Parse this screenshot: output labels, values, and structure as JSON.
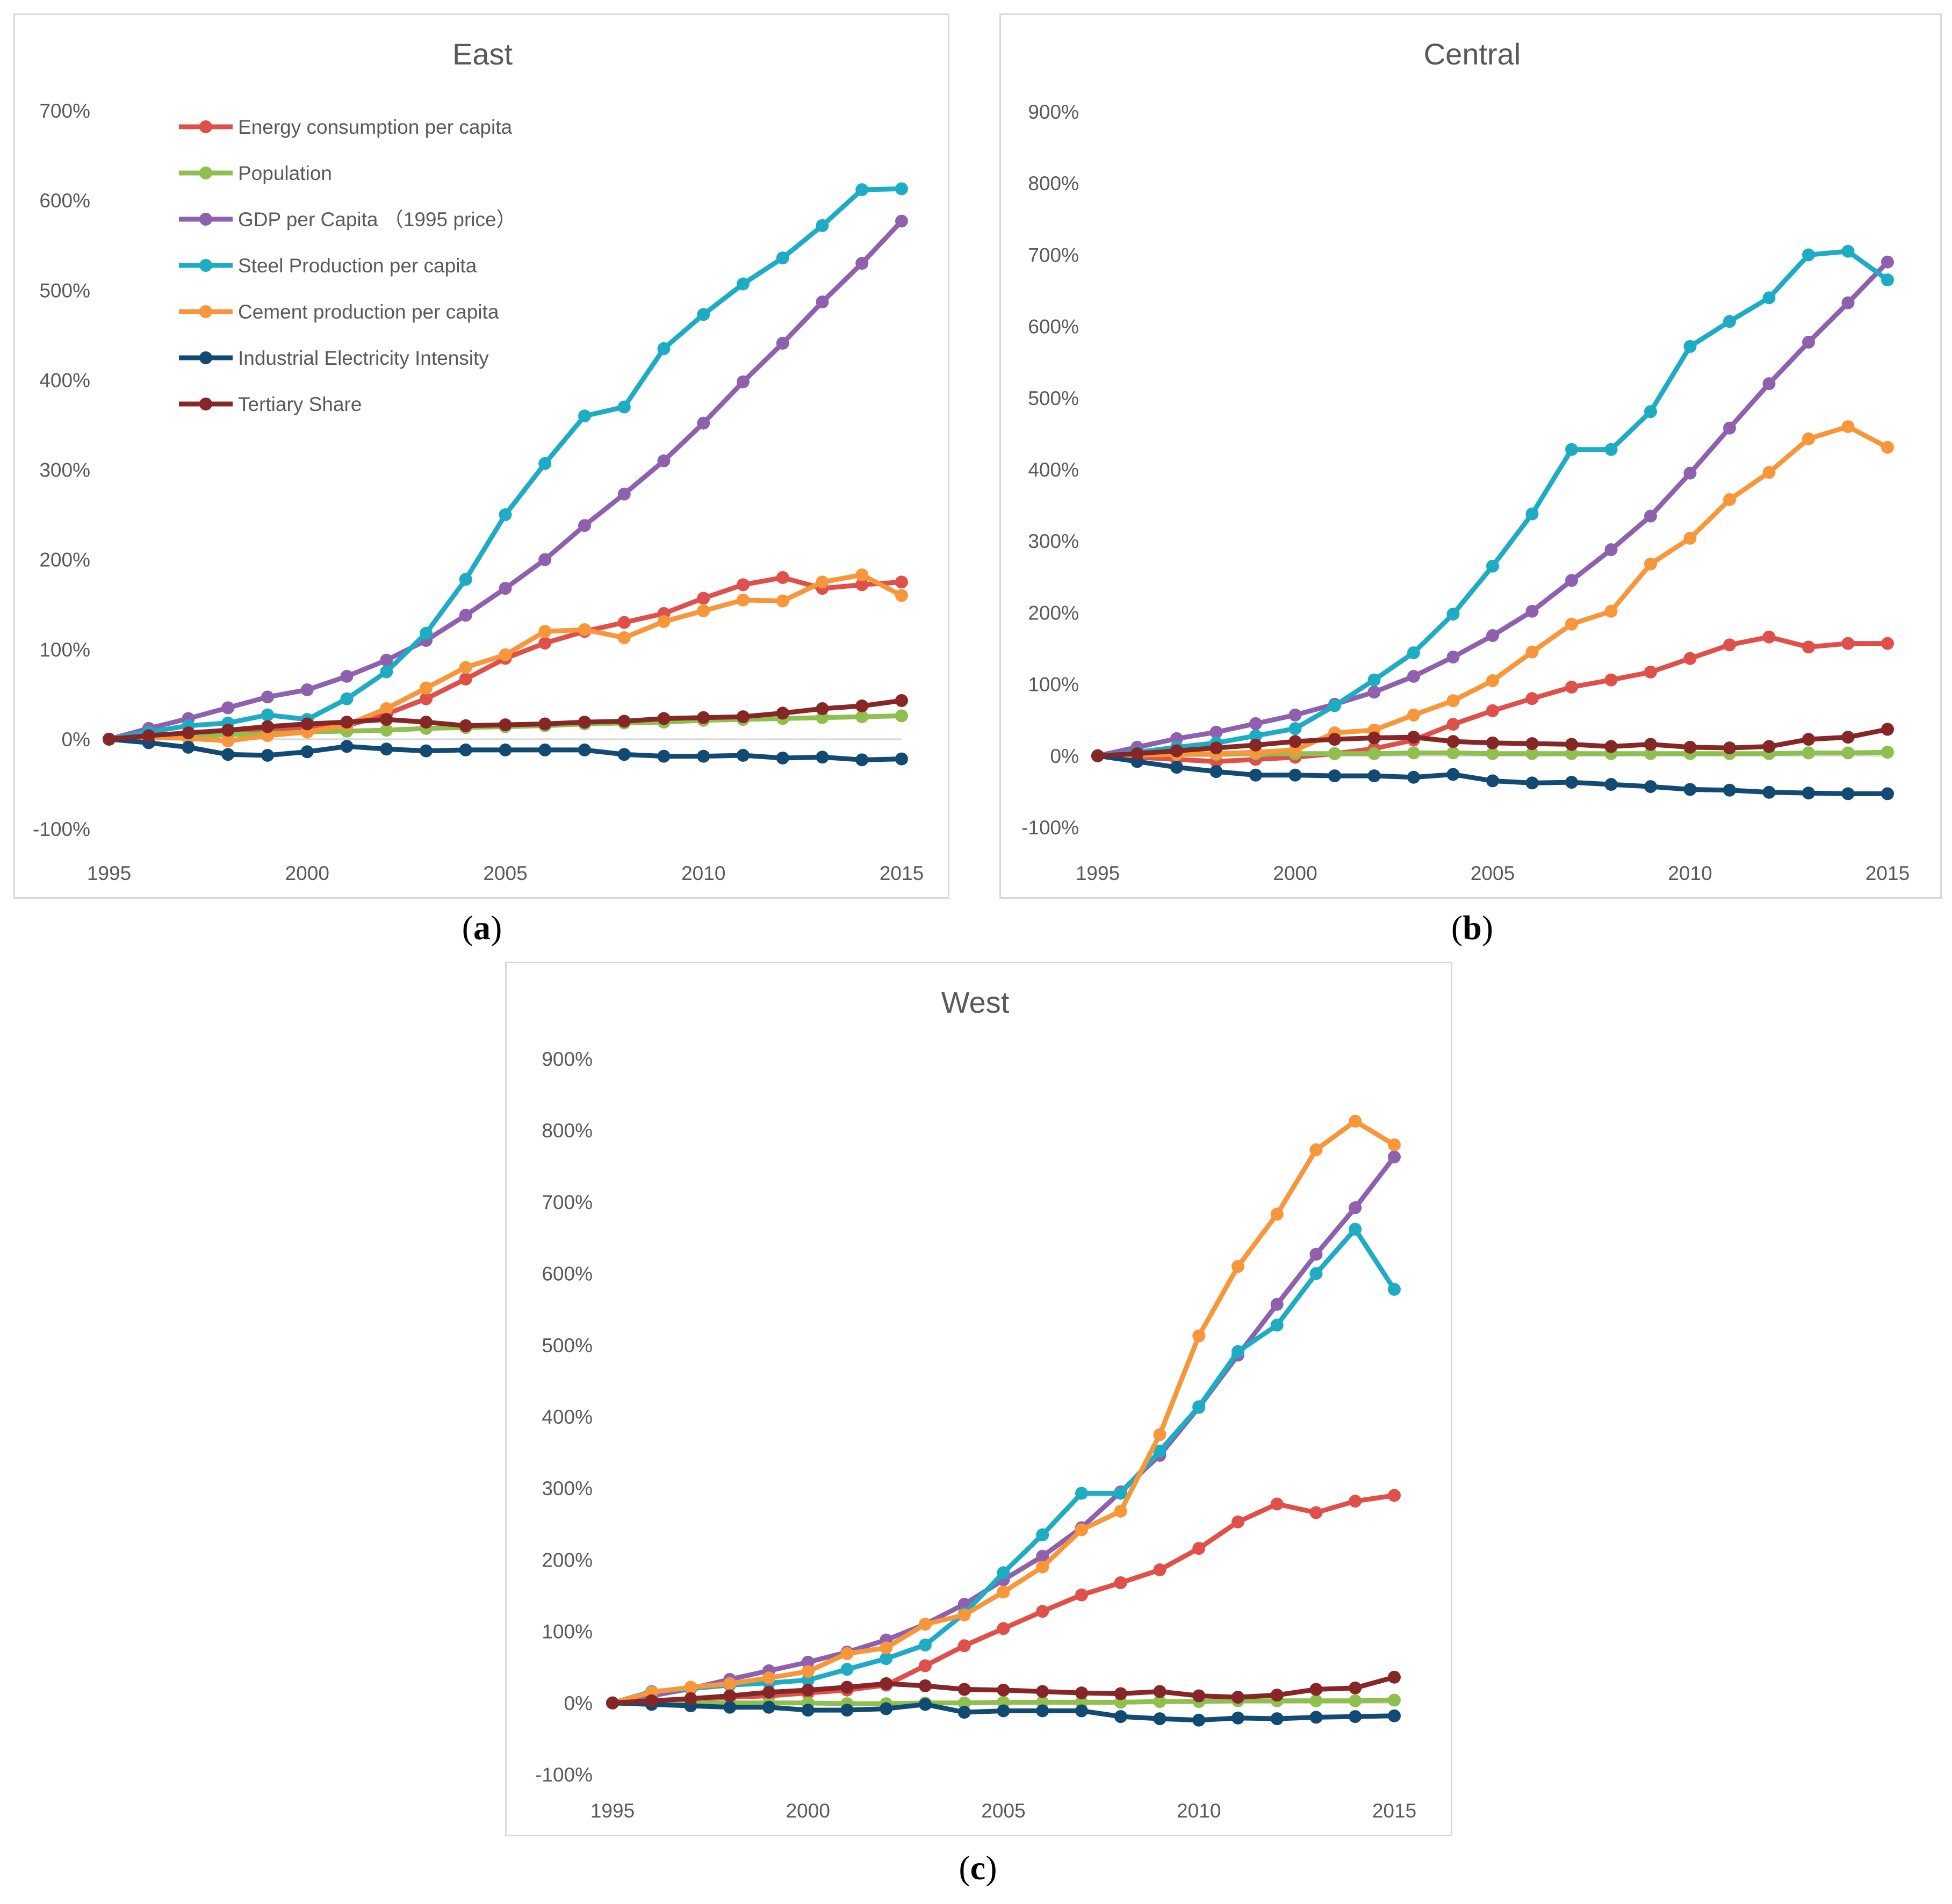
{
  "figure": {
    "captions": [
      "a",
      "b",
      "c"
    ]
  },
  "chart_data": [
    {
      "type": "line",
      "title": "East",
      "xlabel": "",
      "ylabel": "",
      "x": [
        1995,
        1996,
        1997,
        1998,
        1999,
        2000,
        2001,
        2002,
        2003,
        2004,
        2005,
        2006,
        2007,
        2008,
        2009,
        2010,
        2011,
        2012,
        2013,
        2014,
        2015
      ],
      "xticks": [
        "1995",
        "2000",
        "2005",
        "2010",
        "2015"
      ],
      "yticks": [
        "700%",
        "600%",
        "500%",
        "400%",
        "300%",
        "200%",
        "100%",
        "0%",
        "-100%"
      ],
      "ylim": [
        -100,
        700
      ],
      "legend": "top-left",
      "series": [
        {
          "name": "Energy consumption per capita",
          "color": "#e0504a",
          "values": [
            0,
            4,
            6,
            8,
            10,
            12,
            15,
            28,
            45,
            67,
            90,
            107,
            120,
            130,
            140,
            157,
            172,
            180,
            168,
            172,
            175
          ]
        },
        {
          "name": "Population",
          "color": "#8fbf4f",
          "values": [
            0,
            1,
            3,
            5,
            6,
            8,
            9,
            10,
            12,
            13,
            14,
            15,
            17,
            18,
            19,
            21,
            22,
            23,
            24,
            25,
            26
          ]
        },
        {
          "name": "GDP per Capita （1995 price）",
          "color": "#8e60ae",
          "values": [
            0,
            12,
            23,
            35,
            47,
            55,
            70,
            88,
            110,
            138,
            168,
            200,
            238,
            273,
            310,
            352,
            398,
            441,
            487,
            530,
            577
          ]
        },
        {
          "name": "Steel Production per capita",
          "color": "#1eacc4",
          "values": [
            0,
            8,
            15,
            18,
            27,
            22,
            45,
            75,
            118,
            178,
            250,
            307,
            360,
            370,
            435,
            473,
            507,
            536,
            572,
            612,
            613
          ]
        },
        {
          "name": "Cement production per capita",
          "color": "#f8963a",
          "values": [
            0,
            2,
            1,
            -2,
            4,
            8,
            16,
            34,
            57,
            80,
            94,
            120,
            122,
            113,
            131,
            143,
            155,
            154,
            175,
            183,
            160
          ]
        },
        {
          "name": "Industrial Electricity Intensity",
          "color": "#114b73",
          "values": [
            0,
            -4,
            -9,
            -17,
            -18,
            -14,
            -8,
            -11,
            -13,
            -12,
            -12,
            -12,
            -12,
            -17,
            -19,
            -19,
            -18,
            -21,
            -20,
            -23,
            -22
          ]
        },
        {
          "name": "Tertiary Share",
          "color": "#862627",
          "values": [
            0,
            4,
            7,
            10,
            14,
            17,
            19,
            22,
            19,
            15,
            16,
            17,
            19,
            20,
            23,
            24,
            25,
            29,
            34,
            37,
            43
          ]
        }
      ]
    },
    {
      "type": "line",
      "title": "Central",
      "xlabel": "",
      "ylabel": "",
      "x": [
        1995,
        1996,
        1997,
        1998,
        1999,
        2000,
        2001,
        2002,
        2003,
        2004,
        2005,
        2006,
        2007,
        2008,
        2009,
        2010,
        2011,
        2012,
        2013,
        2014,
        2015
      ],
      "xticks": [
        "1995",
        "2000",
        "2005",
        "2010",
        "2015"
      ],
      "yticks": [
        "900%",
        "800%",
        "700%",
        "600%",
        "500%",
        "400%",
        "300%",
        "200%",
        "100%",
        "0%",
        "-100%"
      ],
      "ylim": [
        -100,
        900
      ],
      "legend": "none",
      "series": [
        {
          "name": "Energy consumption per capita",
          "color": "#e0504a",
          "values": [
            0,
            -2,
            -5,
            -8,
            -5,
            -2,
            3,
            10,
            22,
            44,
            63,
            80,
            96,
            106,
            117,
            136,
            155,
            166,
            152,
            157,
            157
          ]
        },
        {
          "name": "Population",
          "color": "#8fbf4f",
          "values": [
            0,
            1,
            2,
            2,
            3,
            3,
            3,
            3,
            4,
            4,
            3,
            3,
            3,
            3,
            3,
            3,
            3,
            3,
            4,
            4,
            5
          ]
        },
        {
          "name": "GDP per Capita （1995 price）",
          "color": "#8e60ae",
          "values": [
            0,
            12,
            24,
            33,
            45,
            57,
            72,
            89,
            111,
            138,
            168,
            202,
            245,
            288,
            335,
            395,
            458,
            520,
            578,
            633,
            690
          ]
        },
        {
          "name": "Steel Production per capita",
          "color": "#1eacc4",
          "values": [
            0,
            5,
            12,
            18,
            28,
            38,
            70,
            106,
            144,
            198,
            265,
            338,
            428,
            428,
            481,
            572,
            607,
            640,
            700,
            705,
            665
          ]
        },
        {
          "name": "Cement production per capita",
          "color": "#f8963a",
          "values": [
            0,
            1,
            2,
            3,
            5,
            8,
            32,
            36,
            57,
            77,
            105,
            145,
            184,
            202,
            268,
            304,
            358,
            396,
            443,
            460,
            431
          ]
        },
        {
          "name": "Industrial Electricity Intensity",
          "color": "#114b73",
          "values": [
            0,
            -8,
            -16,
            -22,
            -27,
            -27,
            -28,
            -28,
            -30,
            -26,
            -35,
            -38,
            -37,
            -40,
            -43,
            -47,
            -48,
            -51,
            -52,
            -53,
            -53
          ]
        },
        {
          "name": "Tertiary Share",
          "color": "#862627",
          "values": [
            0,
            3,
            7,
            11,
            15,
            20,
            23,
            25,
            26,
            20,
            18,
            17,
            16,
            13,
            16,
            12,
            11,
            13,
            23,
            26,
            37
          ]
        }
      ]
    },
    {
      "type": "line",
      "title": "West",
      "xlabel": "",
      "ylabel": "",
      "x": [
        1995,
        1996,
        1997,
        1998,
        1999,
        2000,
        2001,
        2002,
        2003,
        2004,
        2005,
        2006,
        2007,
        2008,
        2009,
        2010,
        2011,
        2012,
        2013,
        2014,
        2015
      ],
      "xticks": [
        "1995",
        "2000",
        "2005",
        "2010",
        "2015"
      ],
      "yticks": [
        "900%",
        "800%",
        "700%",
        "600%",
        "500%",
        "400%",
        "300%",
        "200%",
        "100%",
        "0%",
        "-100%"
      ],
      "ylim": [
        -100,
        900
      ],
      "legend": "none",
      "series": [
        {
          "name": "Energy consumption per capita",
          "color": "#e0504a",
          "values": [
            0,
            2,
            5,
            8,
            10,
            14,
            18,
            25,
            52,
            80,
            104,
            128,
            151,
            168,
            186,
            216,
            253,
            278,
            266,
            282,
            290
          ]
        },
        {
          "name": "Population",
          "color": "#8fbf4f",
          "values": [
            0,
            0,
            0,
            0,
            0,
            0,
            -1,
            -1,
            0,
            0,
            1,
            1,
            1,
            1,
            2,
            2,
            3,
            3,
            3,
            3,
            4
          ]
        },
        {
          "name": "GDP per Capita （1995 price）",
          "color": "#8e60ae",
          "values": [
            0,
            10,
            20,
            33,
            45,
            57,
            71,
            88,
            110,
            138,
            172,
            205,
            245,
            295,
            346,
            413,
            486,
            557,
            627,
            692,
            763
          ]
        },
        {
          "name": "Steel Production per capita",
          "color": "#1eacc4",
          "values": [
            0,
            16,
            20,
            25,
            28,
            32,
            47,
            62,
            81,
            125,
            182,
            235,
            293,
            293,
            352,
            414,
            491,
            528,
            600,
            662,
            578
          ]
        },
        {
          "name": "Cement production per capita",
          "color": "#f8963a",
          "values": [
            0,
            15,
            22,
            27,
            35,
            44,
            69,
            77,
            110,
            123,
            155,
            190,
            242,
            268,
            375,
            513,
            610,
            683,
            773,
            813,
            780
          ]
        },
        {
          "name": "Industrial Electricity Intensity",
          "color": "#114b73",
          "values": [
            0,
            -2,
            -4,
            -6,
            -6,
            -10,
            -10,
            -8,
            -2,
            -13,
            -11,
            -11,
            -11,
            -19,
            -22,
            -24,
            -21,
            -22,
            -20,
            -19,
            -18
          ]
        },
        {
          "name": "Tertiary Share",
          "color": "#862627",
          "values": [
            0,
            3,
            6,
            10,
            15,
            18,
            22,
            27,
            24,
            19,
            18,
            16,
            14,
            13,
            16,
            10,
            8,
            11,
            19,
            21,
            36
          ]
        }
      ]
    }
  ]
}
